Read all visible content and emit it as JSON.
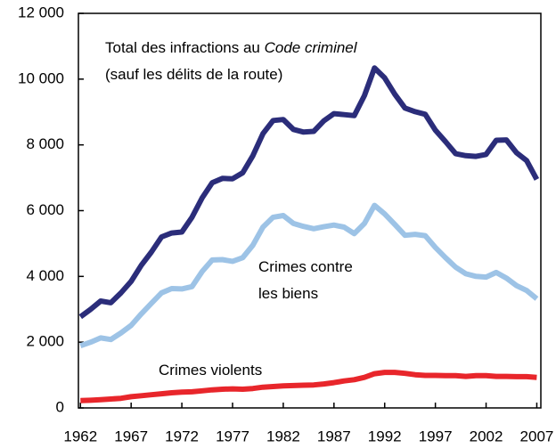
{
  "chart_data": {
    "type": "line",
    "x": [
      1962,
      1963,
      1964,
      1965,
      1966,
      1967,
      1968,
      1969,
      1970,
      1971,
      1972,
      1973,
      1974,
      1975,
      1976,
      1977,
      1978,
      1979,
      1980,
      1981,
      1982,
      1983,
      1984,
      1985,
      1986,
      1987,
      1988,
      1989,
      1990,
      1991,
      1992,
      1993,
      1994,
      1995,
      1996,
      1997,
      1998,
      1999,
      2000,
      2001,
      2002,
      2003,
      2004,
      2005,
      2006,
      2007
    ],
    "series": [
      {
        "color": "#2b2d7a",
        "values": [
          2770,
          3000,
          3250,
          3200,
          3500,
          3850,
          4340,
          4740,
          5200,
          5320,
          5350,
          5800,
          6390,
          6850,
          6980,
          6970,
          7150,
          7670,
          8340,
          8740,
          8770,
          8470,
          8390,
          8410,
          8730,
          8950,
          8920,
          8890,
          9500,
          10340,
          10040,
          9540,
          9120,
          9010,
          8930,
          8450,
          8100,
          7730,
          7670,
          7650,
          7710,
          8140,
          8150,
          7760,
          7520,
          6950
        ]
      },
      {
        "color": "#9dc3e6",
        "values": [
          1890,
          2000,
          2130,
          2080,
          2280,
          2510,
          2860,
          3180,
          3500,
          3630,
          3620,
          3690,
          4150,
          4500,
          4510,
          4460,
          4570,
          4950,
          5500,
          5800,
          5850,
          5610,
          5520,
          5450,
          5510,
          5560,
          5500,
          5300,
          5610,
          6160,
          5900,
          5580,
          5250,
          5280,
          5240,
          4880,
          4570,
          4280,
          4080,
          4000,
          3980,
          4120,
          3950,
          3720,
          3570,
          3320
        ]
      },
      {
        "color": "#e8262b",
        "values": [
          221,
          234,
          249,
          271,
          292,
          340,
          370,
          400,
          430,
          460,
          480,
          490,
          520,
          550,
          570,
          580,
          570,
          590,
          630,
          650,
          670,
          680,
          690,
          700,
          730,
          770,
          820,
          860,
          930,
          1040,
          1080,
          1080,
          1050,
          1010,
          990,
          990,
          980,
          980,
          960,
          980,
          980,
          960,
          960,
          950,
          950,
          930
        ]
      }
    ],
    "annotations": [
      {
        "lines": [
          [
            {
              "text": "Total des infractions au "
            },
            {
              "text": "Code criminel",
              "italic": true
            }
          ],
          [
            {
              "text": "(sauf les délits de la route)"
            }
          ]
        ]
      },
      {
        "lines": [
          [
            {
              "text": "Crimes contre"
            }
          ],
          [
            {
              "text": "les biens"
            }
          ]
        ]
      },
      {
        "lines": [
          [
            {
              "text": "Crimes violents"
            }
          ]
        ]
      }
    ],
    "xlim": [
      1961.8,
      2007.4
    ],
    "xticks": [
      1962,
      1967,
      1972,
      1977,
      1982,
      1987,
      1992,
      1997,
      2002,
      2007
    ],
    "ylim": [
      0,
      12000
    ],
    "yticks": [
      0,
      {
        "value": 2000,
        "label": "2 000"
      },
      {
        "value": 4000,
        "label": "4 000"
      },
      {
        "value": 6000,
        "label": "6 000"
      },
      {
        "value": 8000,
        "label": "8 000"
      },
      {
        "value": 10000,
        "label": "10 000"
      },
      {
        "value": 12000,
        "label": "12 000"
      }
    ]
  }
}
